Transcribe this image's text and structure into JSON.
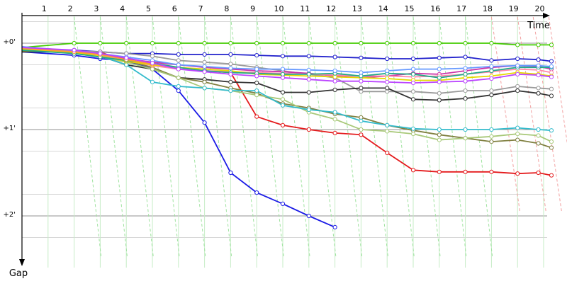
{
  "chart_data": {
    "type": "line",
    "title": "",
    "xlabel": "Time",
    "ylabel": "Gap",
    "x_ticks": [
      "1",
      "2",
      "3",
      "4",
      "5",
      "6",
      "7",
      "8",
      "9",
      "10",
      "11",
      "12",
      "13",
      "14",
      "15",
      "16",
      "17",
      "18",
      "19",
      "20"
    ],
    "y_ticks": [
      "+0'",
      "+1'",
      "+2'"
    ],
    "y_tick_values": [
      0,
      1,
      2
    ],
    "xlim": [
      0,
      21.2
    ],
    "ylim": [
      -0.3,
      2.6
    ],
    "y_inverted": true,
    "grid": true,
    "legend": "none",
    "series": [
      {
        "color": "#44cc00",
        "points": [
          [
            0,
            0.05
          ],
          [
            2,
            0.0
          ],
          [
            3,
            0.0
          ],
          [
            4,
            0.0
          ],
          [
            5,
            0.0
          ],
          [
            6,
            0.0
          ],
          [
            7,
            0.0
          ],
          [
            8,
            0.0
          ],
          [
            9,
            0.0
          ],
          [
            10,
            0.0
          ],
          [
            11,
            0.0
          ],
          [
            12,
            0.0
          ],
          [
            13,
            0.0
          ],
          [
            14,
            0.0
          ],
          [
            15,
            0.0
          ],
          [
            16,
            0.0
          ],
          [
            17,
            0.0
          ],
          [
            18,
            0.0
          ],
          [
            19.0,
            0.02
          ],
          [
            19.8,
            0.02
          ],
          [
            20.3,
            0.02
          ]
        ]
      },
      {
        "color": "#e41a1c",
        "points": [
          [
            0,
            0.04
          ],
          [
            2,
            0.12
          ],
          [
            3,
            0.1
          ],
          [
            4,
            0.22
          ],
          [
            5,
            0.25
          ],
          [
            6,
            0.3
          ],
          [
            7,
            0.32
          ],
          [
            8,
            0.34
          ],
          [
            9,
            0.85
          ],
          [
            10,
            0.95
          ],
          [
            11,
            1.0
          ],
          [
            12,
            1.04
          ],
          [
            13,
            1.06
          ],
          [
            14,
            1.27
          ],
          [
            15,
            1.47
          ],
          [
            16,
            1.49
          ],
          [
            17,
            1.49
          ],
          [
            18,
            1.49
          ],
          [
            19,
            1.51
          ],
          [
            19.8,
            1.5
          ],
          [
            20.3,
            1.53
          ]
        ]
      },
      {
        "color": "#1a1ae6",
        "points": [
          [
            0,
            0.1
          ],
          [
            2,
            0.14
          ],
          [
            3,
            0.18
          ],
          [
            4,
            0.2
          ],
          [
            5,
            0.3
          ],
          [
            6,
            0.55
          ],
          [
            7,
            0.92
          ],
          [
            8,
            1.5
          ],
          [
            9,
            1.73
          ],
          [
            10,
            1.86
          ],
          [
            11,
            2.0
          ],
          [
            12,
            2.13
          ]
        ]
      },
      {
        "color": "#2222cc",
        "points": [
          [
            0,
            0.08
          ],
          [
            2,
            0.08
          ],
          [
            3,
            0.1
          ],
          [
            4,
            0.12
          ],
          [
            5,
            0.12
          ],
          [
            6,
            0.13
          ],
          [
            7,
            0.13
          ],
          [
            8,
            0.13
          ],
          [
            9,
            0.14
          ],
          [
            10,
            0.15
          ],
          [
            11,
            0.15
          ],
          [
            12,
            0.16
          ],
          [
            13,
            0.17
          ],
          [
            14,
            0.18
          ],
          [
            15,
            0.18
          ],
          [
            16,
            0.17
          ],
          [
            17,
            0.16
          ],
          [
            18,
            0.2
          ],
          [
            19,
            0.18
          ],
          [
            19.8,
            0.19
          ],
          [
            20.3,
            0.21
          ]
        ]
      },
      {
        "color": "#9a9a9a",
        "points": [
          [
            0,
            0.06
          ],
          [
            2,
            0.09
          ],
          [
            3,
            0.1
          ],
          [
            4,
            0.12
          ],
          [
            5,
            0.15
          ],
          [
            6,
            0.2
          ],
          [
            7,
            0.22
          ],
          [
            8,
            0.24
          ],
          [
            9,
            0.28
          ],
          [
            10,
            0.32
          ],
          [
            11,
            0.36
          ],
          [
            12,
            0.4
          ],
          [
            13,
            0.56
          ],
          [
            14,
            0.56
          ],
          [
            15,
            0.56
          ],
          [
            16,
            0.58
          ],
          [
            17,
            0.55
          ],
          [
            18,
            0.55
          ],
          [
            19,
            0.5
          ],
          [
            19.8,
            0.52
          ],
          [
            20.3,
            0.53
          ]
        ]
      },
      {
        "color": "#333333",
        "points": [
          [
            0,
            0.1
          ],
          [
            2,
            0.1
          ],
          [
            3,
            0.15
          ],
          [
            4,
            0.25
          ],
          [
            5,
            0.3
          ],
          [
            6,
            0.4
          ],
          [
            7,
            0.42
          ],
          [
            8,
            0.45
          ],
          [
            9,
            0.46
          ],
          [
            10,
            0.57
          ],
          [
            11,
            0.57
          ],
          [
            12,
            0.54
          ],
          [
            13,
            0.52
          ],
          [
            14,
            0.52
          ],
          [
            15,
            0.65
          ],
          [
            16,
            0.66
          ],
          [
            17,
            0.64
          ],
          [
            18,
            0.6
          ],
          [
            19,
            0.55
          ],
          [
            19.8,
            0.58
          ],
          [
            20.3,
            0.61
          ]
        ]
      },
      {
        "color": "#808040",
        "points": [
          [
            0,
            0.09
          ],
          [
            2,
            0.1
          ],
          [
            3,
            0.14
          ],
          [
            4,
            0.2
          ],
          [
            5,
            0.28
          ],
          [
            6,
            0.4
          ],
          [
            7,
            0.45
          ],
          [
            8,
            0.52
          ],
          [
            9,
            0.58
          ],
          [
            10,
            0.7
          ],
          [
            11,
            0.75
          ],
          [
            12,
            0.82
          ],
          [
            13,
            0.86
          ],
          [
            14,
            0.95
          ],
          [
            15,
            1.01
          ],
          [
            16,
            1.06
          ],
          [
            17,
            1.1
          ],
          [
            18,
            1.14
          ],
          [
            19,
            1.12
          ],
          [
            19.8,
            1.16
          ],
          [
            20.3,
            1.21
          ]
        ]
      },
      {
        "color": "#a8c878",
        "points": [
          [
            0,
            0.07
          ],
          [
            2,
            0.12
          ],
          [
            3,
            0.16
          ],
          [
            4,
            0.22
          ],
          [
            5,
            0.3
          ],
          [
            6,
            0.4
          ],
          [
            7,
            0.52
          ],
          [
            8,
            0.55
          ],
          [
            9,
            0.6
          ],
          [
            10,
            0.65
          ],
          [
            11,
            0.8
          ],
          [
            12,
            0.88
          ],
          [
            13,
            1.0
          ],
          [
            14,
            1.02
          ],
          [
            15,
            1.05
          ],
          [
            16,
            1.12
          ],
          [
            17,
            1.1
          ],
          [
            18,
            1.08
          ],
          [
            19,
            1.05
          ],
          [
            19.8,
            1.07
          ],
          [
            20.3,
            1.14
          ]
        ]
      },
      {
        "color": "#33bbcc",
        "points": [
          [
            0,
            0.08
          ],
          [
            2,
            0.11
          ],
          [
            3,
            0.15
          ],
          [
            4,
            0.25
          ],
          [
            5,
            0.45
          ],
          [
            6,
            0.5
          ],
          [
            7,
            0.52
          ],
          [
            8,
            0.55
          ],
          [
            9,
            0.55
          ],
          [
            10,
            0.72
          ],
          [
            11,
            0.77
          ],
          [
            12,
            0.8
          ],
          [
            13,
            0.9
          ],
          [
            14,
            0.95
          ],
          [
            15,
            0.99
          ],
          [
            16,
            1.0
          ],
          [
            17,
            1.0
          ],
          [
            18,
            1.0
          ],
          [
            19,
            0.98
          ],
          [
            19.8,
            1.0
          ],
          [
            20.3,
            1.01
          ]
        ]
      },
      {
        "color": "#cc33aa",
        "points": [
          [
            0,
            0.05
          ],
          [
            2,
            0.1
          ],
          [
            3,
            0.13
          ],
          [
            4,
            0.18
          ],
          [
            5,
            0.22
          ],
          [
            6,
            0.25
          ],
          [
            7,
            0.28
          ],
          [
            8,
            0.3
          ],
          [
            9,
            0.32
          ],
          [
            10,
            0.33
          ],
          [
            11,
            0.35
          ],
          [
            12,
            0.38
          ],
          [
            13,
            0.4
          ],
          [
            14,
            0.38
          ],
          [
            15,
            0.35
          ],
          [
            16,
            0.36
          ],
          [
            17,
            0.32
          ],
          [
            18,
            0.28
          ],
          [
            19,
            0.26
          ],
          [
            19.8,
            0.27
          ],
          [
            20.3,
            0.3
          ]
        ]
      },
      {
        "color": "#ff88aa",
        "points": [
          [
            0,
            0.06
          ],
          [
            2,
            0.12
          ],
          [
            3,
            0.14
          ],
          [
            4,
            0.2
          ],
          [
            5,
            0.26
          ],
          [
            6,
            0.3
          ],
          [
            7,
            0.32
          ],
          [
            8,
            0.33
          ],
          [
            9,
            0.34
          ],
          [
            10,
            0.35
          ],
          [
            11,
            0.36
          ],
          [
            12,
            0.37
          ],
          [
            13,
            0.38
          ],
          [
            14,
            0.38
          ],
          [
            15,
            0.39
          ],
          [
            16,
            0.38
          ],
          [
            17,
            0.36
          ],
          [
            18,
            0.33
          ],
          [
            19,
            0.3
          ],
          [
            19.8,
            0.31
          ],
          [
            20.3,
            0.34
          ]
        ]
      },
      {
        "color": "#e6d800",
        "points": [
          [
            0,
            0.07
          ],
          [
            2,
            0.11
          ],
          [
            3,
            0.15
          ],
          [
            4,
            0.21
          ],
          [
            5,
            0.25
          ],
          [
            6,
            0.28
          ],
          [
            7,
            0.3
          ],
          [
            8,
            0.32
          ],
          [
            9,
            0.36
          ],
          [
            10,
            0.37
          ],
          [
            11,
            0.38
          ],
          [
            12,
            0.39
          ],
          [
            13,
            0.4
          ],
          [
            14,
            0.41
          ],
          [
            15,
            0.43
          ],
          [
            16,
            0.43
          ],
          [
            17,
            0.4
          ],
          [
            18,
            0.38
          ],
          [
            19,
            0.34
          ],
          [
            19.8,
            0.36
          ],
          [
            20.3,
            0.38
          ]
        ]
      },
      {
        "color": "#22aa88",
        "points": [
          [
            0,
            0.08
          ],
          [
            2,
            0.12
          ],
          [
            3,
            0.16
          ],
          [
            4,
            0.2
          ],
          [
            5,
            0.23
          ],
          [
            6,
            0.28
          ],
          [
            7,
            0.32
          ],
          [
            8,
            0.34
          ],
          [
            9,
            0.35
          ],
          [
            10,
            0.36
          ],
          [
            11,
            0.36
          ],
          [
            12,
            0.35
          ],
          [
            13,
            0.38
          ],
          [
            14,
            0.35
          ],
          [
            15,
            0.36
          ],
          [
            16,
            0.4
          ],
          [
            17,
            0.36
          ],
          [
            18,
            0.32
          ],
          [
            19,
            0.28
          ],
          [
            19.8,
            0.28
          ],
          [
            20.3,
            0.28
          ]
        ]
      },
      {
        "color": "#6699ff",
        "points": [
          [
            0,
            0.04
          ],
          [
            2,
            0.09
          ],
          [
            3,
            0.12
          ],
          [
            4,
            0.16
          ],
          [
            5,
            0.2
          ],
          [
            6,
            0.25
          ],
          [
            7,
            0.27
          ],
          [
            8,
            0.29
          ],
          [
            9,
            0.3
          ],
          [
            10,
            0.3
          ],
          [
            11,
            0.31
          ],
          [
            12,
            0.32
          ],
          [
            13,
            0.34
          ],
          [
            14,
            0.32
          ],
          [
            15,
            0.3
          ],
          [
            16,
            0.3
          ],
          [
            17,
            0.29
          ],
          [
            18,
            0.27
          ],
          [
            19,
            0.26
          ],
          [
            19.8,
            0.26
          ],
          [
            20.3,
            0.27
          ]
        ]
      },
      {
        "color": "#ff9933",
        "points": [
          [
            0,
            0.06
          ],
          [
            2,
            0.1
          ],
          [
            3,
            0.13
          ],
          [
            4,
            0.19
          ],
          [
            5,
            0.24
          ]
        ]
      },
      {
        "color": "#bb44ff",
        "points": [
          [
            0,
            0.05
          ],
          [
            2,
            0.08
          ],
          [
            3,
            0.12
          ],
          [
            4,
            0.17
          ],
          [
            5,
            0.23
          ],
          [
            6,
            0.3
          ],
          [
            7,
            0.33
          ],
          [
            8,
            0.36
          ],
          [
            9,
            0.38
          ],
          [
            10,
            0.4
          ],
          [
            11,
            0.42
          ],
          [
            12,
            0.44
          ],
          [
            13,
            0.44
          ],
          [
            14,
            0.45
          ],
          [
            15,
            0.46
          ],
          [
            16,
            0.45
          ],
          [
            17,
            0.44
          ],
          [
            18,
            0.41
          ],
          [
            19,
            0.36
          ],
          [
            19.8,
            0.37
          ],
          [
            20.3,
            0.39
          ]
        ]
      }
    ]
  }
}
